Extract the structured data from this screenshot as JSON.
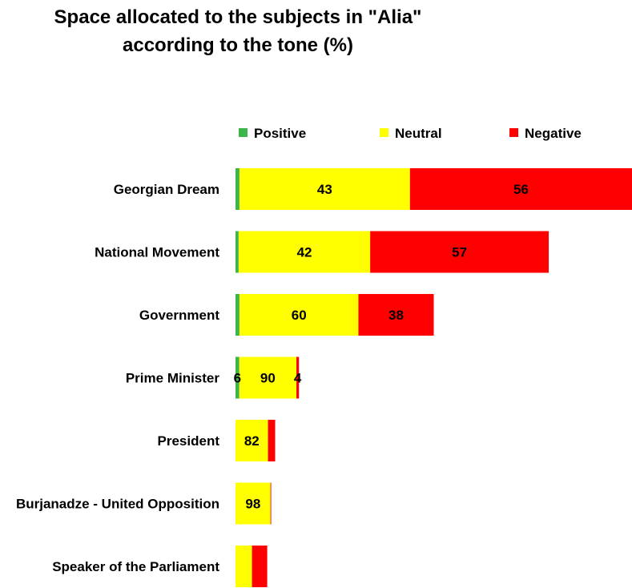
{
  "chart_data": {
    "type": "bar",
    "orientation": "horizontal",
    "stacked": true,
    "title": [
      "Space allocated to the subjects in \"Alia\"",
      "according to the tone (%)"
    ],
    "categories": [
      "Georgian Dream",
      "National Movement",
      "Government",
      "Prime Minister",
      "President",
      "Burjanadze - United Opposition",
      "Speaker of the Parliament"
    ],
    "series": [
      {
        "name": "Positive",
        "color": "#3DB54A",
        "values": [
          1,
          1,
          2,
          6,
          0,
          0,
          0
        ],
        "labels": [
          "",
          "",
          "",
          "6",
          "",
          "",
          ""
        ]
      },
      {
        "name": "Neutral",
        "color": "#FFFF00",
        "values": [
          43,
          42,
          60,
          90,
          82,
          98,
          52
        ],
        "labels": [
          "43",
          "42",
          "60",
          "90",
          "82",
          "98",
          ""
        ]
      },
      {
        "name": "Negative",
        "color": "#FF0000",
        "values": [
          56,
          57,
          38,
          4,
          18,
          2,
          48
        ],
        "labels": [
          "56",
          "57",
          "38",
          "4",
          "",
          "",
          ""
        ]
      }
    ],
    "bar_scale_per_category": [
      1.0,
      0.79,
      0.5,
      0.16,
      0.1,
      0.09,
      0.08
    ],
    "legend_position": "top",
    "grid": false
  }
}
